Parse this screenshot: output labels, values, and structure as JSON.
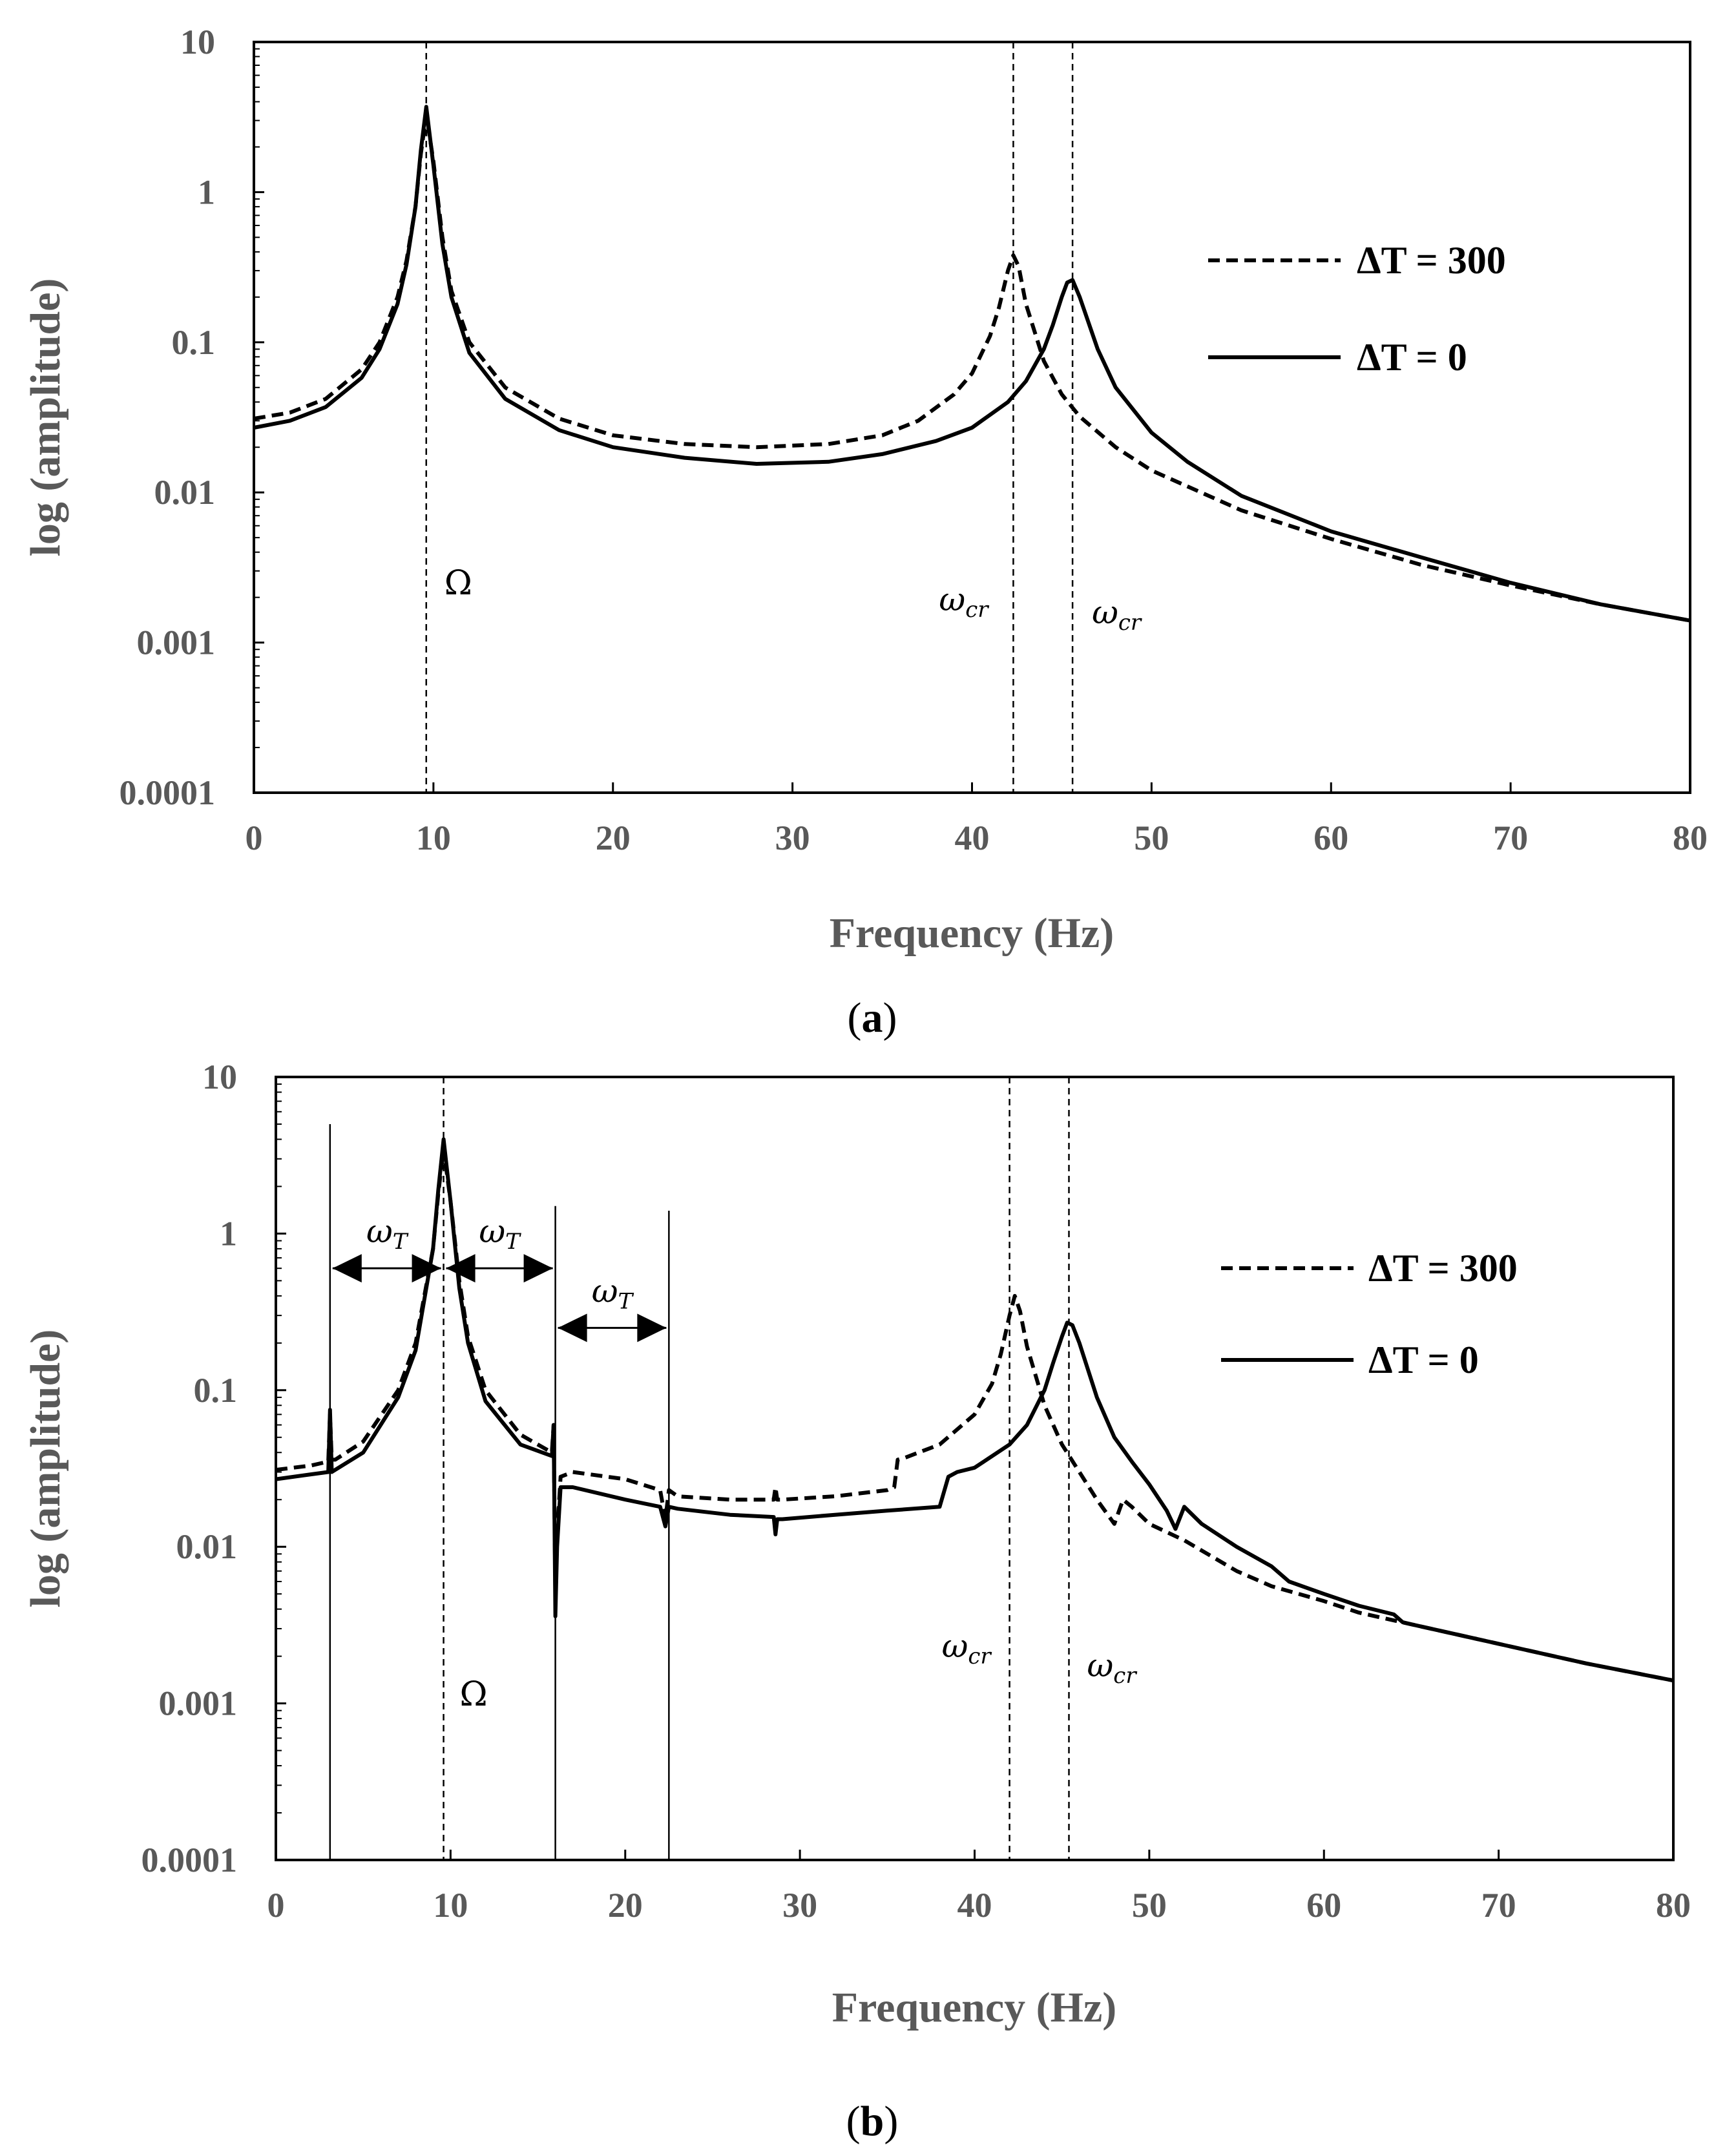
{
  "chart_data": [
    {
      "type": "line",
      "panel_label": "a",
      "xlabel": "Frequency (Hz)",
      "ylabel": "log (amplitude)",
      "xlim": [
        0,
        80
      ],
      "ylim": [
        0.0001,
        10
      ],
      "yscale": "log",
      "x_ticks": [
        "0",
        "10",
        "20",
        "30",
        "40",
        "50",
        "60",
        "70",
        "80"
      ],
      "y_ticks": [
        "10",
        "1",
        "0.1",
        "0.01",
        "0.001",
        "0.0001"
      ],
      "legend": [
        {
          "label": "ΔT = 300",
          "style": "dashed"
        },
        {
          "label": "ΔT = 0",
          "style": "solid"
        }
      ],
      "series": [
        {
          "name": "ΔT = 300",
          "style": "dashed",
          "x": [
            0,
            2,
            4,
            6,
            7,
            8,
            8.5,
            9,
            9.3,
            9.6,
            10,
            10.5,
            11,
            12,
            14,
            17,
            20,
            24,
            28,
            32,
            35,
            37,
            39,
            40,
            41,
            41.5,
            42,
            42.3,
            42.6,
            43,
            44,
            45,
            46,
            48,
            50,
            55,
            60,
            65,
            70,
            75,
            80
          ],
          "y": [
            0.031,
            0.034,
            0.042,
            0.066,
            0.1,
            0.2,
            0.35,
            0.8,
            1.8,
            3.3,
            1.6,
            0.5,
            0.22,
            0.1,
            0.05,
            0.031,
            0.024,
            0.021,
            0.02,
            0.021,
            0.024,
            0.03,
            0.045,
            0.062,
            0.11,
            0.17,
            0.3,
            0.38,
            0.32,
            0.18,
            0.075,
            0.045,
            0.032,
            0.02,
            0.014,
            0.0076,
            0.0049,
            0.0033,
            0.0024,
            0.0018,
            0.0014
          ]
        },
        {
          "name": "ΔT = 0",
          "style": "solid",
          "x": [
            0,
            2,
            4,
            6,
            7,
            8,
            8.5,
            9,
            9.3,
            9.6,
            10,
            10.5,
            11,
            12,
            14,
            17,
            20,
            24,
            28,
            32,
            35,
            38,
            40,
            42,
            43,
            44,
            44.5,
            45,
            45.3,
            45.6,
            46,
            47,
            48,
            50,
            52,
            55,
            60,
            65,
            70,
            75,
            80
          ],
          "y": [
            0.027,
            0.03,
            0.037,
            0.058,
            0.09,
            0.18,
            0.33,
            0.8,
            1.9,
            3.7,
            1.5,
            0.45,
            0.2,
            0.085,
            0.042,
            0.026,
            0.02,
            0.017,
            0.0155,
            0.016,
            0.018,
            0.022,
            0.027,
            0.04,
            0.055,
            0.09,
            0.13,
            0.2,
            0.25,
            0.26,
            0.2,
            0.09,
            0.05,
            0.025,
            0.016,
            0.0095,
            0.0055,
            0.0037,
            0.0025,
            0.0018,
            0.0014
          ]
        }
      ],
      "vlines": [
        {
          "x": 9.6,
          "label": "Ω"
        },
        {
          "x": 42.3,
          "label": "ω",
          "sub": "cr"
        },
        {
          "x": 45.6,
          "label": "ω",
          "sub": "cr"
        }
      ]
    },
    {
      "type": "line",
      "panel_label": "b",
      "xlabel": "Frequency (Hz)",
      "ylabel": "log (amplitude)",
      "xlim": [
        0,
        80
      ],
      "ylim": [
        0.0001,
        10
      ],
      "yscale": "log",
      "x_ticks": [
        "0",
        "10",
        "20",
        "30",
        "40",
        "50",
        "60",
        "70",
        "80"
      ],
      "y_ticks": [
        "10",
        "1",
        "0.1",
        "0.01",
        "0.001",
        "0.0001"
      ],
      "legend": [
        {
          "label": "ΔT = 300",
          "style": "dashed"
        },
        {
          "label": "ΔT = 0",
          "style": "solid"
        }
      ],
      "series": [
        {
          "name": "ΔT = 300",
          "style": "dashed",
          "x": [
            0,
            2,
            3,
            3.1,
            3.2,
            3.4,
            5,
            7,
            8,
            9,
            9.3,
            9.6,
            10,
            10.5,
            11,
            12,
            14,
            15.8,
            15.9,
            16,
            16.1,
            16.3,
            17,
            20,
            22,
            22.3,
            22.5,
            23,
            26,
            28.5,
            28.6,
            28.7,
            29,
            32,
            35,
            35.4,
            35.6,
            36,
            38,
            40,
            41,
            41.5,
            42,
            42.3,
            42.6,
            43,
            44,
            45,
            46,
            47,
            48,
            48.5,
            49,
            50,
            52,
            55,
            57,
            60,
            62,
            65,
            70,
            75,
            80
          ],
          "y": [
            0.031,
            0.033,
            0.035,
            0.07,
            0.036,
            0.036,
            0.047,
            0.1,
            0.2,
            0.8,
            1.8,
            3.5,
            1.6,
            0.5,
            0.22,
            0.1,
            0.052,
            0.04,
            0.06,
            0.005,
            0.012,
            0.028,
            0.03,
            0.027,
            0.023,
            0.015,
            0.023,
            0.021,
            0.02,
            0.02,
            0.024,
            0.02,
            0.02,
            0.021,
            0.023,
            0.024,
            0.036,
            0.037,
            0.045,
            0.07,
            0.11,
            0.17,
            0.3,
            0.4,
            0.32,
            0.19,
            0.08,
            0.045,
            0.03,
            0.02,
            0.014,
            0.02,
            0.018,
            0.014,
            0.011,
            0.007,
            0.0056,
            0.0045,
            0.0038,
            0.0032,
            0.0024,
            0.0018,
            0.0014
          ]
        },
        {
          "name": "ΔT = 0",
          "style": "solid",
          "x": [
            0,
            2,
            3,
            3.1,
            3.2,
            3.4,
            5,
            7,
            8,
            9,
            9.3,
            9.6,
            10,
            10.5,
            11,
            12,
            14,
            15.8,
            15.9,
            16,
            16.1,
            16.3,
            17,
            20,
            22,
            22.3,
            22.5,
            23,
            26,
            28.5,
            28.6,
            28.7,
            29,
            32,
            35,
            38,
            38.5,
            39,
            40,
            42,
            43,
            44,
            44.5,
            45,
            45.3,
            45.6,
            46,
            47,
            48,
            49,
            50,
            51,
            51.5,
            52,
            53,
            55,
            57,
            58,
            60,
            62,
            64,
            64.5,
            65,
            70,
            75,
            80
          ],
          "y": [
            0.027,
            0.029,
            0.03,
            0.075,
            0.03,
            0.031,
            0.04,
            0.09,
            0.18,
            0.8,
            1.9,
            4.0,
            1.6,
            0.45,
            0.2,
            0.085,
            0.045,
            0.038,
            0.06,
            0.0036,
            0.01,
            0.024,
            0.024,
            0.02,
            0.018,
            0.0135,
            0.018,
            0.0175,
            0.016,
            0.0155,
            0.012,
            0.015,
            0.015,
            0.016,
            0.017,
            0.018,
            0.028,
            0.03,
            0.032,
            0.045,
            0.06,
            0.1,
            0.15,
            0.22,
            0.27,
            0.26,
            0.2,
            0.09,
            0.05,
            0.035,
            0.025,
            0.017,
            0.013,
            0.018,
            0.014,
            0.01,
            0.0075,
            0.006,
            0.005,
            0.0042,
            0.0037,
            0.0033,
            0.0032,
            0.0024,
            0.0018,
            0.0014
          ]
        }
      ],
      "vlines": [
        {
          "x": 9.6,
          "label": "Ω"
        },
        {
          "x": 42.0,
          "label": "ω",
          "sub": "cr"
        },
        {
          "x": 45.4,
          "label": "ω",
          "sub": "cr"
        }
      ],
      "markers": [
        {
          "x": 3.1,
          "top": 5
        },
        {
          "x": 16.0,
          "top": 1.5
        },
        {
          "x": 22.5,
          "top": 1.4
        }
      ],
      "arrows": [
        {
          "x1": 3.1,
          "x2": 9.6,
          "y": 0.6,
          "label": "ω",
          "sub": "T"
        },
        {
          "x1": 9.6,
          "x2": 16.0,
          "y": 0.6,
          "label": "ω",
          "sub": "T"
        },
        {
          "x1": 16.0,
          "x2": 22.5,
          "y": 0.25,
          "label": "ω",
          "sub": "T"
        }
      ]
    }
  ]
}
